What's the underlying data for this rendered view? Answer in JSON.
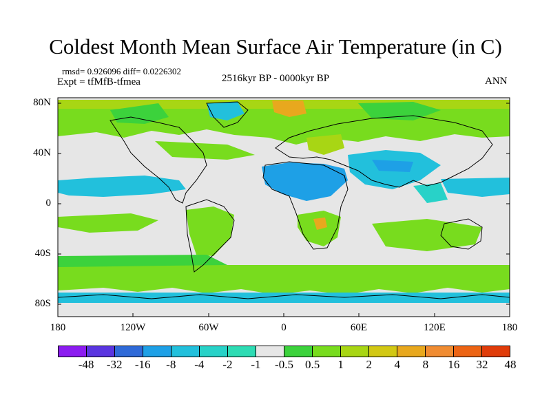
{
  "title": "Coldest Month Mean Surface Air Temperature (in C)",
  "stats": "rmsd= 0.926096 diff= 0.0226302",
  "experiment": "Expt = tfMfB-tfmea",
  "period": "2516kyr BP - 0000kyr BP",
  "season": "ANN",
  "map": {
    "background_color": "#e6e6e6",
    "coastline_color": "#000000",
    "lat_labels": [
      "80N",
      "40N",
      "0",
      "40S",
      "80S"
    ],
    "lon_labels": [
      "180",
      "120W",
      "60W",
      "0",
      "60E",
      "120E",
      "180"
    ]
  },
  "colorbar": {
    "colors": [
      "#8c1cf0",
      "#5a35e0",
      "#2f6ad8",
      "#1ea0e6",
      "#22c0dc",
      "#28d2c8",
      "#2edcb4",
      "#e6e6e6",
      "#3cd23c",
      "#78dc1e",
      "#a8d614",
      "#d2c814",
      "#e8a81e",
      "#f08c32",
      "#ec6414",
      "#e03c0a"
    ],
    "labels": [
      "-48",
      "-32",
      "-16",
      "-8",
      "-4",
      "-2",
      "-1",
      "-0.5",
      "0.5",
      "1",
      "2",
      "4",
      "8",
      "16",
      "32",
      "48"
    ]
  }
}
